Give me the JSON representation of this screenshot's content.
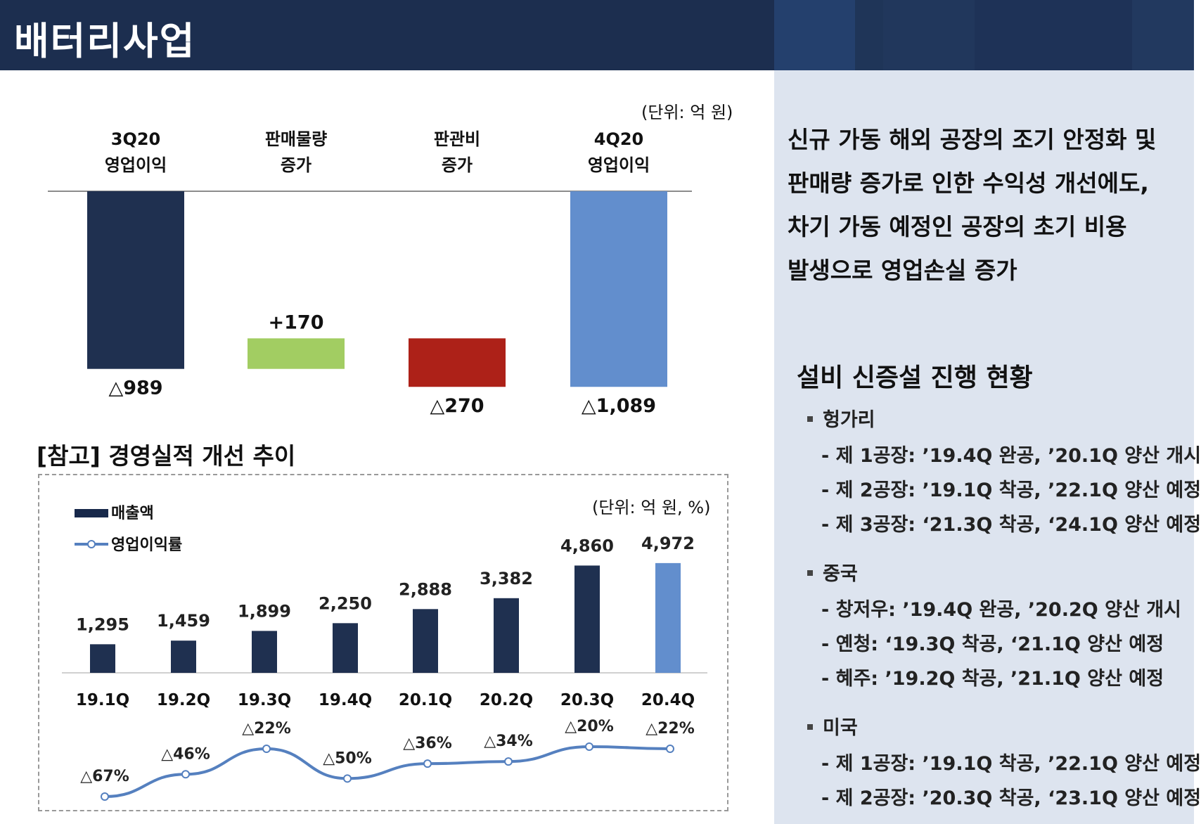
{
  "header": {
    "title": "배터리사업"
  },
  "waterfall": {
    "unit": "(단위: 억 원)",
    "chart_data": {
      "type": "waterfall",
      "categories": [
        [
          "3Q20",
          "영업이익"
        ],
        [
          "판매물량",
          "증가"
        ],
        [
          "판관비",
          "증가"
        ],
        [
          "4Q20",
          "영업이익"
        ]
      ],
      "values": [
        -989,
        170,
        -270,
        -1089
      ],
      "labels": [
        "△989",
        "+170",
        "△270",
        "△1,089"
      ],
      "colors": [
        "#1f3050",
        "#a2cd62",
        "#ad2118",
        "#628ecd"
      ]
    }
  },
  "reference": {
    "title": "[참고] 경영실적 개선 추이",
    "unit": "(단위: 억 원, %)",
    "legend": {
      "bar_label": "매출액",
      "line_label": "영업이익률"
    },
    "chart_data": {
      "type": "bar+line",
      "categories": [
        "19.1Q",
        "19.2Q",
        "19.3Q",
        "19.4Q",
        "20.1Q",
        "20.2Q",
        "20.3Q",
        "20.4Q"
      ],
      "series": [
        {
          "name": "매출액",
          "type": "bar",
          "values": [
            1295,
            1459,
            1899,
            2250,
            2888,
            3382,
            4860,
            4972
          ],
          "labels": [
            "1,295",
            "1,459",
            "1,899",
            "2,250",
            "2,888",
            "3,382",
            "4,860",
            "4,972"
          ]
        },
        {
          "name": "영업이익률",
          "type": "line",
          "values": [
            -67,
            -46,
            -22,
            -50,
            -36,
            -34,
            -20,
            -22
          ],
          "labels": [
            "△67%",
            "△46%",
            "△22%",
            "△50%",
            "△36%",
            "△34%",
            "△20%",
            "△22%"
          ]
        }
      ],
      "bar_color": "#1f3050",
      "highlight_color": "#628ecd",
      "line_color": "#5580bf"
    }
  },
  "summary": {
    "lines": [
      "신규 가동 해외 공장의 조기 안정화 및",
      "판매량 증가로 인한 수익성 개선에도,",
      "차기 가동 예정인 공장의 초기 비용",
      "발생으로 영업손실 증가"
    ]
  },
  "facilities": {
    "title": "설비 신증설 진행 현황",
    "regions": [
      {
        "name": "헝가리",
        "items": [
          "- 제 1공장: ’19.4Q 완공, ’20.1Q 양산 개시",
          "- 제 2공장: ’19.1Q 착공, ’22.1Q 양산 예정",
          "- 제 3공장: ‘21.3Q 착공, ‘24.1Q 양산 예정"
        ]
      },
      {
        "name": "중국",
        "items": [
          "- 창저우: ’19.4Q 완공, ’20.2Q 양산 개시",
          "- 옌청: ‘19.3Q 착공, ‘21.1Q 양산 예정",
          "- 혜주: ’19.2Q 착공, ’21.1Q 양산 예정"
        ]
      },
      {
        "name": "미국",
        "items": [
          "- 제 1공장: ’19.1Q 착공, ’22.1Q 양산 예정",
          "- 제 2공장: ’20.3Q 착공, ‘23.1Q 양산 예정"
        ]
      }
    ]
  }
}
